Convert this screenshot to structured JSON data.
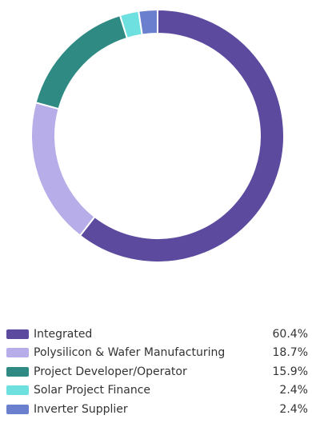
{
  "chart_data": {
    "type": "pie",
    "variant": "donut",
    "title": "",
    "legend_position": "bottom",
    "slices": [
      {
        "label": "Integrated",
        "value": 60.4,
        "value_label": "60.4%",
        "color": "#5b4a9e"
      },
      {
        "label": "Polysilicon & Wafer Manufacturing",
        "value": 18.7,
        "value_label": "18.7%",
        "color": "#b7ade8"
      },
      {
        "label": "Project Developer/Operator",
        "value": 15.9,
        "value_label": "15.9%",
        "color": "#2e8a83"
      },
      {
        "label": "Solar Project Finance",
        "value": 2.4,
        "value_label": "2.4%",
        "color": "#6fe0e0"
      },
      {
        "label": "Inverter Supplier",
        "value": 2.4,
        "value_label": "2.4%",
        "color": "#6a7fce"
      }
    ]
  }
}
